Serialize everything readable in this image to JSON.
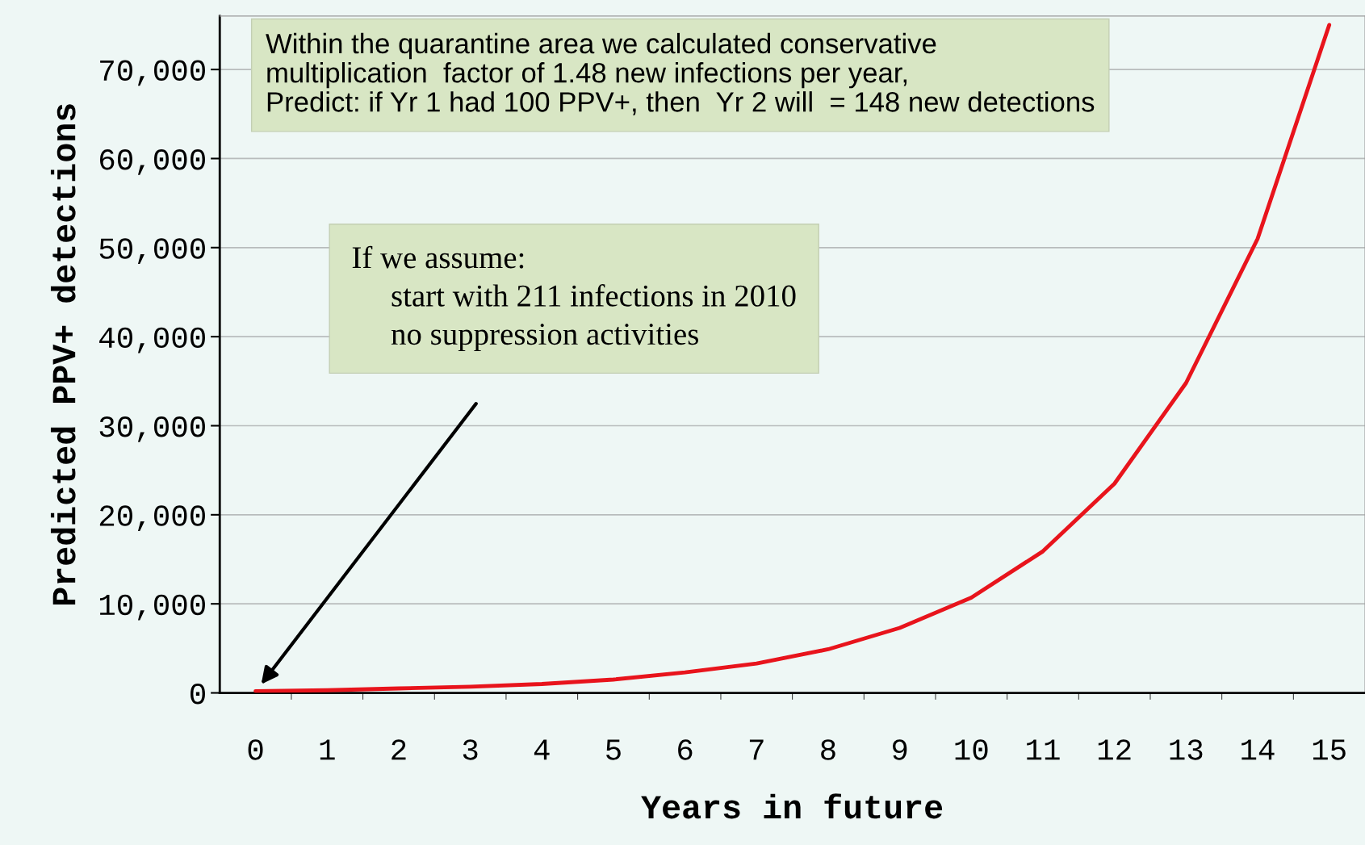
{
  "chart_data": {
    "type": "line",
    "xlabel": "Years in future",
    "ylabel": "Predicted PPV+ detections",
    "categories": [
      "0",
      "1",
      "2",
      "3",
      "4",
      "5",
      "6",
      "7",
      "8",
      "9",
      "10",
      "11",
      "12",
      "13",
      "14",
      "15"
    ],
    "series": [
      {
        "color": "#e8141c",
        "values": [
          200,
          300,
          500,
          700,
          1000,
          1500,
          2300,
          3300,
          4900,
          7300,
          10700,
          15900,
          23500,
          34800,
          51000,
          75000
        ]
      }
    ],
    "ylim": [
      0,
      76000
    ],
    "yticks": [
      {
        "value": 0,
        "label": "0"
      },
      {
        "value": 10000,
        "label": "10,000"
      },
      {
        "value": 20000,
        "label": "20,000"
      },
      {
        "value": 30000,
        "label": "30,000"
      },
      {
        "value": 40000,
        "label": "40,000"
      },
      {
        "value": 50000,
        "label": "50,000"
      },
      {
        "value": 60000,
        "label": "60,000"
      },
      {
        "value": 70000,
        "label": "70,000"
      }
    ],
    "grid": "y",
    "marker": "none",
    "line_style": "solid",
    "annotations": [
      "Within the quarantine area we calculated conservative\nmultiplication  factor of 1.48 new infections per year,\nPredict: if Yr 1 had 100 PPV+, then  Yr 2 will  = 148 new detections",
      "If we assume:\n     start with 211 infections in 2010\n     no suppression activities"
    ]
  }
}
